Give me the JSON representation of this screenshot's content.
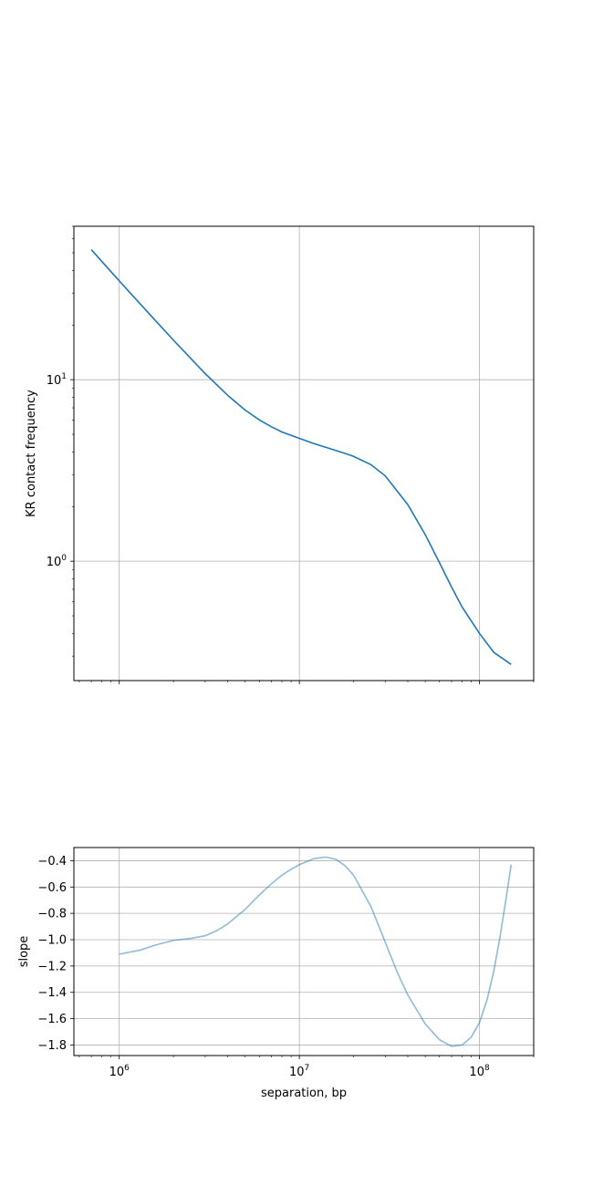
{
  "chart_data": [
    {
      "type": "line",
      "ylabel": "KR contact frequency",
      "xlabel": "",
      "xscale": "log",
      "yscale": "log",
      "xlim": [
        560000,
        200000000
      ],
      "ylim": [
        0.22,
        70
      ],
      "grid": true,
      "line_color": "#1f77b4",
      "yticks": [
        {
          "value": 1,
          "base": "10",
          "exp": "0"
        },
        {
          "value": 10,
          "base": "10",
          "exp": "1"
        }
      ],
      "series": [
        {
          "x": [
            700000,
            1000000,
            1500000,
            2000000,
            3000000,
            4000000,
            5000000,
            6000000,
            7000000,
            8000000,
            10000000,
            12000000,
            15000000,
            18000000,
            20000000,
            25000000,
            30000000,
            40000000,
            50000000,
            60000000,
            70000000,
            80000000,
            100000000,
            120000000,
            150000000
          ],
          "y": [
            52,
            35,
            22.5,
            16.5,
            10.8,
            8.2,
            6.8,
            6.0,
            5.5,
            5.15,
            4.75,
            4.45,
            4.15,
            3.92,
            3.78,
            3.4,
            2.95,
            2.05,
            1.4,
            0.98,
            0.72,
            0.56,
            0.4,
            0.315,
            0.27
          ]
        }
      ]
    },
    {
      "type": "line",
      "ylabel": "slope",
      "xlabel": "separation, bp",
      "xscale": "log",
      "yscale": "linear",
      "xlim": [
        560000,
        200000000
      ],
      "ylim": [
        -1.88,
        -0.3
      ],
      "grid": true,
      "line_color": "#1f77b4",
      "line_alpha": 0.5,
      "yticks": [
        -1.8,
        -1.6,
        -1.4,
        -1.2,
        -1.0,
        -0.8,
        -0.6,
        -0.4
      ],
      "ytick_labels": [
        "−1.8",
        "−1.6",
        "−1.4",
        "−1.2",
        "−1.0",
        "−0.8",
        "−0.6",
        "−0.4"
      ],
      "xticks": [
        {
          "value": 1000000,
          "base": "10",
          "exp": "6"
        },
        {
          "value": 10000000,
          "base": "10",
          "exp": "7"
        },
        {
          "value": 100000000,
          "base": "10",
          "exp": "8"
        }
      ],
      "series": [
        {
          "x": [
            1000000,
            1300000,
            1600000,
            2000000,
            2500000,
            3000000,
            3500000,
            4000000,
            5000000,
            6000000,
            7000000,
            8000000,
            9000000,
            10000000,
            12000000,
            14000000,
            16000000,
            18000000,
            20000000,
            25000000,
            30000000,
            35000000,
            40000000,
            50000000,
            60000000,
            70000000,
            80000000,
            90000000,
            100000000,
            110000000,
            120000000,
            130000000,
            140000000,
            150000000
          ],
          "y": [
            -1.11,
            -1.08,
            -1.04,
            -1.005,
            -0.99,
            -0.97,
            -0.93,
            -0.88,
            -0.77,
            -0.66,
            -0.575,
            -0.51,
            -0.465,
            -0.43,
            -0.385,
            -0.372,
            -0.39,
            -0.44,
            -0.51,
            -0.75,
            -1.02,
            -1.25,
            -1.42,
            -1.64,
            -1.76,
            -1.81,
            -1.8,
            -1.74,
            -1.63,
            -1.46,
            -1.24,
            -0.98,
            -0.7,
            -0.43
          ]
        }
      ]
    }
  ]
}
